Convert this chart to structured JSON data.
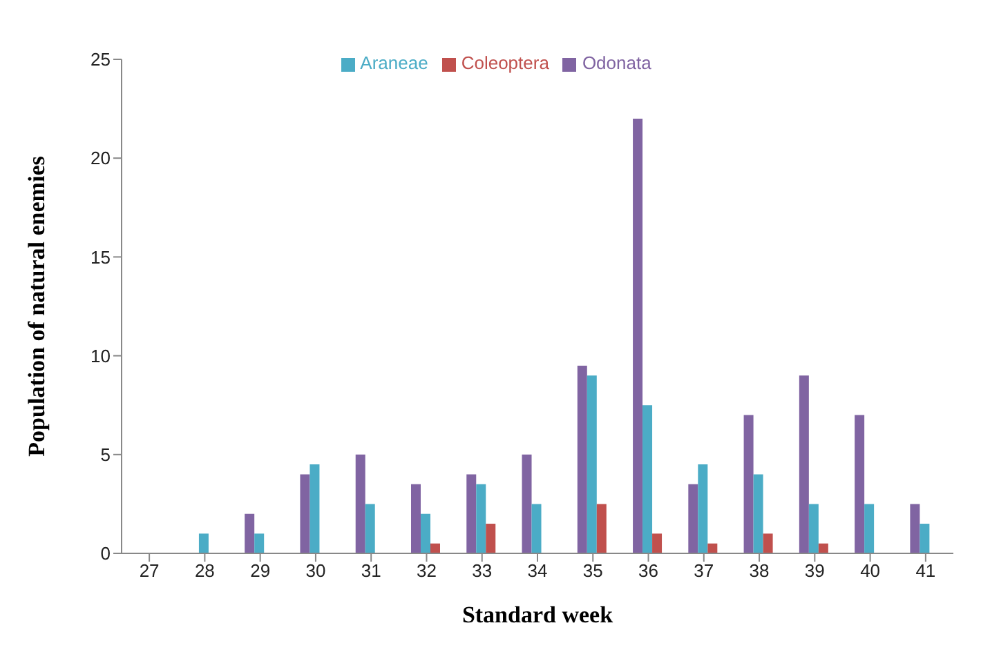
{
  "chart_data": {
    "type": "bar",
    "xlabel": "Standard week",
    "ylabel": "Population  of natural enemies",
    "categories": [
      "27",
      "28",
      "29",
      "30",
      "31",
      "32",
      "33",
      "34",
      "35",
      "36",
      "37",
      "38",
      "39",
      "40",
      "41"
    ],
    "series": [
      {
        "name": "Odonata",
        "color": "#8064a2",
        "values": [
          0,
          0,
          2,
          4,
          5,
          3.5,
          4,
          5,
          9.5,
          22,
          3.5,
          7,
          9,
          7,
          2.5
        ]
      },
      {
        "name": "Araneae",
        "color": "#4bacc6",
        "values": [
          0,
          1,
          1,
          4.5,
          2.5,
          2,
          3.5,
          2.5,
          9,
          7.5,
          4.5,
          4,
          2.5,
          2.5,
          1.5
        ]
      },
      {
        "name": "Coleoptera",
        "color": "#c0504d",
        "values": [
          0,
          0,
          0,
          0,
          0,
          0.5,
          1.5,
          0,
          2.5,
          1,
          0.5,
          1,
          0.5,
          0,
          0
        ]
      }
    ],
    "ylim": [
      0,
      25
    ],
    "yticks": [
      0,
      5,
      10,
      15,
      20,
      25
    ],
    "grid": false,
    "legend": "top"
  }
}
